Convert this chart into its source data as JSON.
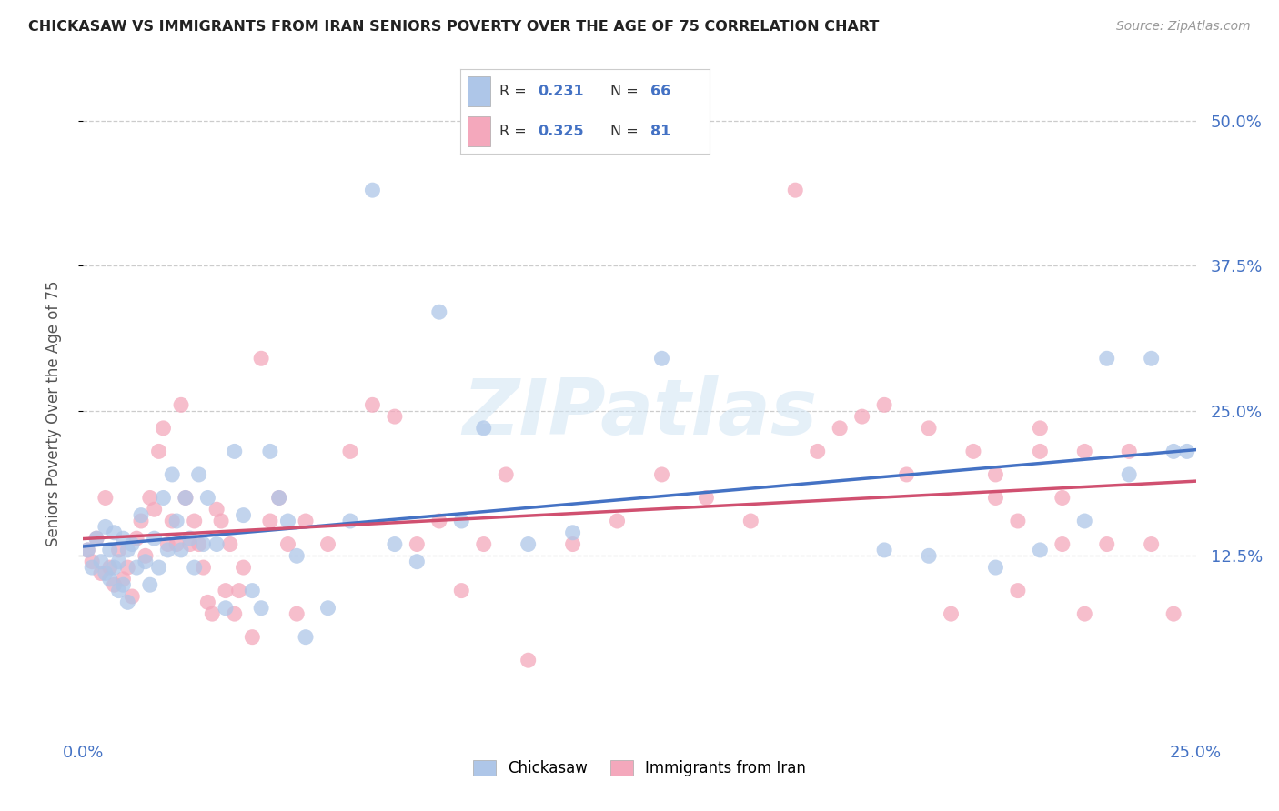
{
  "title": "CHICKASAW VS IMMIGRANTS FROM IRAN SENIORS POVERTY OVER THE AGE OF 75 CORRELATION CHART",
  "source": "Source: ZipAtlas.com",
  "ylabel": "Seniors Poverty Over the Age of 75",
  "legend_label1": "Chickasaw",
  "legend_label2": "Immigrants from Iran",
  "color_blue": "#aec6e8",
  "color_pink": "#f4a8bc",
  "color_line_blue": "#4472c4",
  "color_line_pink": "#d05070",
  "title_color": "#222222",
  "axis_label_color": "#4472c4",
  "watermark": "ZIPatlas",
  "xmin": 0.0,
  "xmax": 0.25,
  "ymin": -0.025,
  "ymax": 0.52,
  "xticks": [
    0.0,
    0.25
  ],
  "xtick_labels": [
    "0.0%",
    "25.0%"
  ],
  "yticks": [
    0.125,
    0.25,
    0.375,
    0.5
  ],
  "ytick_labels": [
    "12.5%",
    "25.0%",
    "37.5%",
    "50.0%"
  ],
  "r1": "0.231",
  "n1": "66",
  "r2": "0.325",
  "n2": "81",
  "chick_x": [
    0.001,
    0.002,
    0.003,
    0.004,
    0.005,
    0.005,
    0.006,
    0.006,
    0.007,
    0.007,
    0.008,
    0.008,
    0.009,
    0.009,
    0.01,
    0.01,
    0.011,
    0.012,
    0.013,
    0.014,
    0.015,
    0.016,
    0.017,
    0.018,
    0.019,
    0.02,
    0.021,
    0.022,
    0.023,
    0.024,
    0.025,
    0.026,
    0.027,
    0.028,
    0.03,
    0.032,
    0.034,
    0.036,
    0.038,
    0.04,
    0.042,
    0.044,
    0.046,
    0.048,
    0.05,
    0.055,
    0.06,
    0.065,
    0.07,
    0.075,
    0.08,
    0.085,
    0.09,
    0.1,
    0.11,
    0.13,
    0.18,
    0.19,
    0.205,
    0.215,
    0.225,
    0.23,
    0.235,
    0.24,
    0.245,
    0.248
  ],
  "chick_y": [
    0.13,
    0.115,
    0.14,
    0.12,
    0.15,
    0.11,
    0.13,
    0.105,
    0.115,
    0.145,
    0.12,
    0.095,
    0.14,
    0.1,
    0.13,
    0.085,
    0.135,
    0.115,
    0.16,
    0.12,
    0.1,
    0.14,
    0.115,
    0.175,
    0.13,
    0.195,
    0.155,
    0.13,
    0.175,
    0.14,
    0.115,
    0.195,
    0.135,
    0.175,
    0.135,
    0.08,
    0.215,
    0.16,
    0.095,
    0.08,
    0.215,
    0.175,
    0.155,
    0.125,
    0.055,
    0.08,
    0.155,
    0.44,
    0.135,
    0.12,
    0.335,
    0.155,
    0.235,
    0.135,
    0.145,
    0.295,
    0.13,
    0.125,
    0.115,
    0.13,
    0.155,
    0.295,
    0.195,
    0.295,
    0.215,
    0.215
  ],
  "iran_x": [
    0.001,
    0.002,
    0.003,
    0.004,
    0.005,
    0.006,
    0.007,
    0.008,
    0.009,
    0.01,
    0.011,
    0.012,
    0.013,
    0.014,
    0.015,
    0.016,
    0.017,
    0.018,
    0.019,
    0.02,
    0.021,
    0.022,
    0.023,
    0.024,
    0.025,
    0.026,
    0.027,
    0.028,
    0.029,
    0.03,
    0.031,
    0.032,
    0.033,
    0.034,
    0.035,
    0.036,
    0.038,
    0.04,
    0.042,
    0.044,
    0.046,
    0.048,
    0.05,
    0.055,
    0.06,
    0.065,
    0.07,
    0.075,
    0.08,
    0.085,
    0.09,
    0.095,
    0.1,
    0.11,
    0.12,
    0.13,
    0.14,
    0.15,
    0.16,
    0.165,
    0.17,
    0.175,
    0.18,
    0.185,
    0.19,
    0.195,
    0.2,
    0.205,
    0.21,
    0.215,
    0.22,
    0.225,
    0.23,
    0.235,
    0.24,
    0.245,
    0.205,
    0.21,
    0.215,
    0.22,
    0.225
  ],
  "iran_y": [
    0.13,
    0.12,
    0.14,
    0.11,
    0.175,
    0.115,
    0.1,
    0.13,
    0.105,
    0.115,
    0.09,
    0.14,
    0.155,
    0.125,
    0.175,
    0.165,
    0.215,
    0.235,
    0.135,
    0.155,
    0.135,
    0.255,
    0.175,
    0.135,
    0.155,
    0.135,
    0.115,
    0.085,
    0.075,
    0.165,
    0.155,
    0.095,
    0.135,
    0.075,
    0.095,
    0.115,
    0.055,
    0.295,
    0.155,
    0.175,
    0.135,
    0.075,
    0.155,
    0.135,
    0.215,
    0.255,
    0.245,
    0.135,
    0.155,
    0.095,
    0.135,
    0.195,
    0.035,
    0.135,
    0.155,
    0.195,
    0.175,
    0.155,
    0.44,
    0.215,
    0.235,
    0.245,
    0.255,
    0.195,
    0.235,
    0.075,
    0.215,
    0.175,
    0.095,
    0.235,
    0.175,
    0.215,
    0.135,
    0.215,
    0.135,
    0.075,
    0.195,
    0.155,
    0.215,
    0.135,
    0.075
  ]
}
